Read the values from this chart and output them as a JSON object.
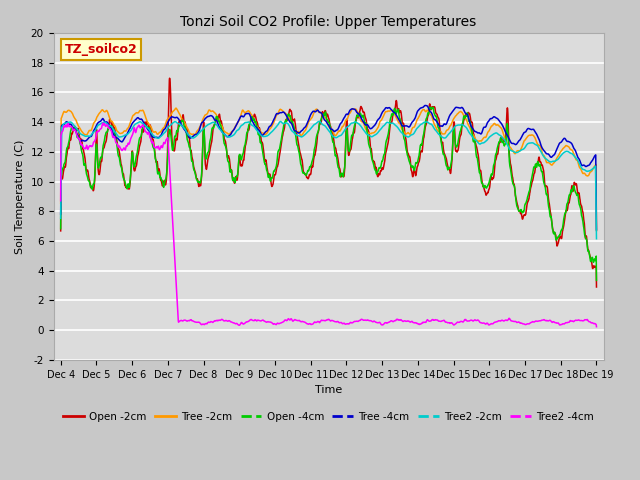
{
  "title": "Tonzi Soil CO2 Profile: Upper Temperatures",
  "xlabel": "Time",
  "ylabel": "Soil Temperature (C)",
  "ylim": [
    -2,
    20
  ],
  "yticks": [
    -2,
    0,
    2,
    4,
    6,
    8,
    10,
    12,
    14,
    16,
    18,
    20
  ],
  "xtick_labels": [
    "Dec 4",
    "Dec 5",
    "Dec 6",
    "Dec 7",
    "Dec 8",
    "Dec 9",
    "Dec 10",
    "Dec 11",
    "Dec 12",
    "Dec 13",
    "Dec 14",
    "Dec 15",
    "Dec 16",
    "Dec 17",
    "Dec 18",
    "Dec 19"
  ],
  "legend_labels": [
    "Open -2cm",
    "Tree -2cm",
    "Open -4cm",
    "Tree -4cm",
    "Tree2 -2cm",
    "Tree2 -4cm"
  ],
  "legend_colors": [
    "#cc0000",
    "#ff9900",
    "#00cc00",
    "#0000cc",
    "#00cccc",
    "#ff00ff"
  ],
  "label_box_text": "TZ_soilco2",
  "label_box_color": "#ffffcc",
  "label_box_edgecolor": "#cc9900",
  "label_text_color": "#cc0000",
  "fig_bg_color": "#c8c8c8",
  "plot_bg_color": "#dcdcdc",
  "grid_color": "#ffffff",
  "title_fontsize": 10,
  "axis_label_fontsize": 8,
  "tick_fontsize": 7.5,
  "legend_fontsize": 7.5
}
